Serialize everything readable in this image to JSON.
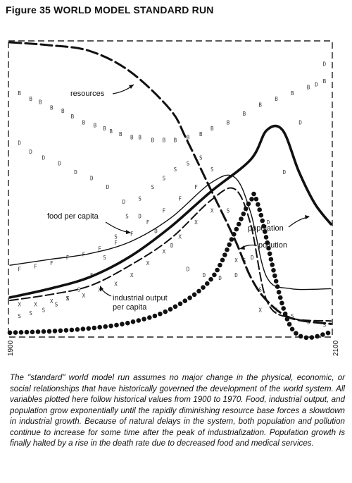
{
  "figure": {
    "title": "Figure 35 WORLD MODEL STANDARD RUN",
    "caption": "The \"standard\" world model run assumes no major change in the physical, economic, or social relationships that have historically governed the development of the world system. All variables plotted here follow historical values from 1900 to 1970. Food, industrial output, and population grow exponentially until the rapidly diminishing resource base forces a slowdown in industrial growth. Because of natural delays in the system, both population and pollution continue to increase for some time after the peak of industrialization. Population growth is finally halted by a rise in the death rate due to decreased food and medical services."
  },
  "chart_data": {
    "type": "line",
    "x_tick_labels": [
      "1900",
      "2100"
    ],
    "xlim": [
      1900,
      2100
    ],
    "ylim": [
      0,
      1
    ],
    "grid": false,
    "series": [
      {
        "name": "resources",
        "style": "dashed-heavy",
        "x": [
          1900,
          1925,
          1950,
          1975,
          2000,
          2010,
          2025,
          2040,
          2050,
          2060,
          2075,
          2100
        ],
        "y": [
          1.0,
          0.99,
          0.97,
          0.9,
          0.77,
          0.67,
          0.5,
          0.33,
          0.2,
          0.12,
          0.06,
          0.04
        ]
      },
      {
        "name": "population",
        "style": "thick",
        "x": [
          1900,
          1925,
          1950,
          1975,
          2000,
          2025,
          2050,
          2060,
          2070,
          2080,
          2090,
          2100
        ],
        "y": [
          0.13,
          0.16,
          0.2,
          0.27,
          0.37,
          0.49,
          0.6,
          0.7,
          0.7,
          0.56,
          0.45,
          0.38
        ]
      },
      {
        "name": "pollution",
        "style": "dotted-heavy",
        "x": [
          1900,
          1925,
          1950,
          1975,
          2000,
          2025,
          2040,
          2050,
          2055,
          2075,
          2100
        ],
        "y": [
          0.01,
          0.015,
          0.025,
          0.045,
          0.09,
          0.19,
          0.35,
          0.46,
          0.44,
          0.03,
          0.01
        ]
      },
      {
        "name": "food per capita",
        "style": "thin",
        "x": [
          1900,
          1925,
          1950,
          1975,
          2000,
          2025,
          2040,
          2050,
          2060,
          2075,
          2100
        ],
        "y": [
          0.24,
          0.26,
          0.28,
          0.32,
          0.4,
          0.52,
          0.54,
          0.42,
          0.2,
          0.16,
          0.16
        ]
      },
      {
        "name": "industrial output per capita",
        "style": "dashed-light",
        "x": [
          1900,
          1925,
          1950,
          1975,
          2000,
          2025,
          2040,
          2050,
          2060,
          2075,
          2100
        ],
        "y": [
          0.12,
          0.14,
          0.17,
          0.24,
          0.33,
          0.46,
          0.5,
          0.38,
          0.12,
          0.06,
          0.05
        ]
      }
    ],
    "annotations": [
      {
        "text": "resources",
        "series": "resources"
      },
      {
        "text": "food per capita",
        "series": "food per capita"
      },
      {
        "text": "population",
        "series": "population"
      },
      {
        "text": "pollution",
        "series": "pollution"
      },
      {
        "text": "industrial output",
        "series": "industrial output per capita"
      },
      {
        "text": "per capita",
        "series": "industrial output per capita"
      }
    ],
    "marker_rows": {
      "B": {
        "x": [
          1905,
          1912,
          1918,
          1925,
          1932,
          1938,
          1945,
          1952,
          1958,
          1962,
          1968,
          1975,
          1980,
          1988,
          1995,
          2002,
          2010,
          2018,
          2025,
          2035,
          2045,
          2055,
          2065,
          2075,
          2085,
          2095
        ],
        "y": [
          0.82,
          0.8,
          0.79,
          0.77,
          0.76,
          0.74,
          0.72,
          0.71,
          0.7,
          0.69,
          0.68,
          0.67,
          0.67,
          0.66,
          0.66,
          0.66,
          0.67,
          0.68,
          0.7,
          0.72,
          0.75,
          0.78,
          0.8,
          0.82,
          0.84,
          0.86
        ],
        "text": "B"
      },
      "D": {
        "x": [
          1905,
          1912,
          1920,
          1930,
          1940,
          1950,
          1960,
          1970,
          1980,
          1990,
          2000,
          2010,
          2020,
          2030,
          2040,
          2050,
          2060,
          2070,
          2080,
          2090,
          2095
        ],
        "y": [
          0.65,
          0.62,
          0.6,
          0.58,
          0.55,
          0.53,
          0.5,
          0.45,
          0.4,
          0.35,
          0.3,
          0.22,
          0.2,
          0.19,
          0.2,
          0.26,
          0.38,
          0.55,
          0.72,
          0.85,
          0.92
        ],
        "text": "D"
      },
      "S": {
        "x": [
          1905,
          1912,
          1920,
          1928,
          1935,
          1942,
          1950,
          1958,
          1965,
          1972,
          1980,
          1988,
          1995,
          2002,
          2010,
          2018,
          2025,
          2035,
          2045,
          2055,
          2065,
          2075,
          2085,
          2095
        ],
        "y": [
          0.06,
          0.07,
          0.08,
          0.1,
          0.12,
          0.15,
          0.2,
          0.26,
          0.33,
          0.4,
          0.46,
          0.5,
          0.53,
          0.56,
          0.58,
          0.6,
          0.56,
          0.42,
          0.25,
          0.15,
          0.08,
          0.06,
          0.04,
          0.03
        ],
        "text": "S"
      },
      "F": {
        "x": [
          1905,
          1915,
          1925,
          1935,
          1945,
          1955,
          1965,
          1975,
          1985,
          1995,
          2005,
          2015
        ],
        "y": [
          0.22,
          0.23,
          0.24,
          0.26,
          0.27,
          0.29,
          0.31,
          0.34,
          0.38,
          0.42,
          0.46,
          0.5
        ],
        "text": "F"
      },
      "X": {
        "x": [
          1905,
          1915,
          1925,
          1935,
          1945,
          1955,
          1965,
          1975,
          1985,
          1995,
          2005,
          2015,
          2025,
          2040,
          2055
        ],
        "y": [
          0.1,
          0.1,
          0.11,
          0.12,
          0.13,
          0.15,
          0.17,
          0.2,
          0.24,
          0.28,
          0.33,
          0.38,
          0.42,
          0.25,
          0.08
        ],
        "text": "X"
      }
    }
  }
}
